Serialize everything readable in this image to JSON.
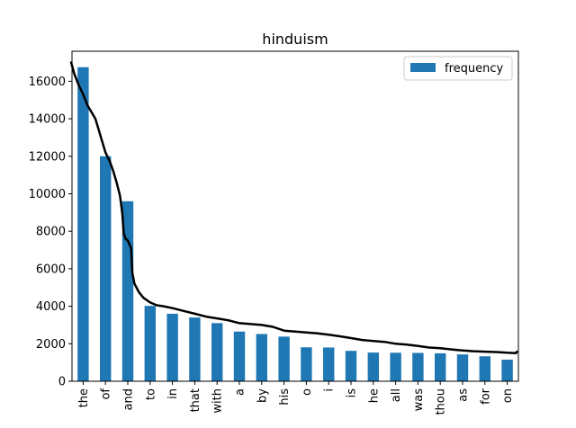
{
  "chart_data": {
    "type": "bar",
    "title": "hinduism",
    "xlabel": "",
    "ylabel": "",
    "categories": [
      "the",
      "of",
      "and",
      "to",
      "in",
      "that",
      "with",
      "a",
      "by",
      "his",
      "o",
      "i",
      "is",
      "he",
      "all",
      "was",
      "thou",
      "as",
      "for",
      "on"
    ],
    "series": [
      {
        "name": "frequency",
        "values": [
          16750,
          12000,
          9600,
          4020,
          3600,
          3400,
          3100,
          2650,
          2520,
          2380,
          1810,
          1800,
          1620,
          1530,
          1520,
          1510,
          1490,
          1430,
          1330,
          1150
        ]
      }
    ],
    "overlay_line": {
      "color": "#000000",
      "points": [
        [
          -0.55,
          17050
        ],
        [
          -0.4,
          16400
        ],
        [
          -0.2,
          15800
        ],
        [
          0.0,
          15300
        ],
        [
          0.2,
          14700
        ],
        [
          0.4,
          14300
        ],
        [
          0.55,
          14000
        ],
        [
          0.65,
          13600
        ],
        [
          0.8,
          13000
        ],
        [
          1.0,
          12200
        ],
        [
          1.2,
          11700
        ],
        [
          1.35,
          11200
        ],
        [
          1.5,
          10600
        ],
        [
          1.65,
          9900
        ],
        [
          1.75,
          9000
        ],
        [
          1.82,
          7900
        ],
        [
          1.9,
          7600
        ],
        [
          2.0,
          7500
        ],
        [
          2.15,
          7100
        ],
        [
          2.2,
          5800
        ],
        [
          2.3,
          5200
        ],
        [
          2.5,
          4750
        ],
        [
          2.7,
          4450
        ],
        [
          3.0,
          4200
        ],
        [
          3.3,
          4050
        ],
        [
          3.6,
          4000
        ],
        [
          4.0,
          3900
        ],
        [
          4.5,
          3750
        ],
        [
          5.0,
          3600
        ],
        [
          5.5,
          3450
        ],
        [
          6.0,
          3350
        ],
        [
          6.5,
          3250
        ],
        [
          7.0,
          3100
        ],
        [
          7.5,
          3050
        ],
        [
          8.0,
          3000
        ],
        [
          8.5,
          2900
        ],
        [
          9.0,
          2700
        ],
        [
          9.5,
          2650
        ],
        [
          10.0,
          2600
        ],
        [
          10.5,
          2550
        ],
        [
          11.0,
          2480
        ],
        [
          11.5,
          2400
        ],
        [
          12.0,
          2300
        ],
        [
          12.5,
          2200
        ],
        [
          13.0,
          2150
        ],
        [
          13.5,
          2100
        ],
        [
          14.0,
          2000
        ],
        [
          14.5,
          1950
        ],
        [
          15.0,
          1880
        ],
        [
          15.5,
          1800
        ],
        [
          16.0,
          1760
        ],
        [
          16.5,
          1700
        ],
        [
          17.0,
          1640
        ],
        [
          17.5,
          1600
        ],
        [
          18.0,
          1580
        ],
        [
          18.5,
          1560
        ],
        [
          19.0,
          1520
        ],
        [
          19.4,
          1500
        ],
        [
          19.45,
          1620
        ]
      ]
    },
    "yticks": [
      0,
      2000,
      4000,
      6000,
      8000,
      10000,
      12000,
      14000,
      16000
    ],
    "ylim": [
      0,
      17600
    ],
    "grid": false,
    "legend_position": "top-right",
    "bar_color": "#1f77b4"
  }
}
